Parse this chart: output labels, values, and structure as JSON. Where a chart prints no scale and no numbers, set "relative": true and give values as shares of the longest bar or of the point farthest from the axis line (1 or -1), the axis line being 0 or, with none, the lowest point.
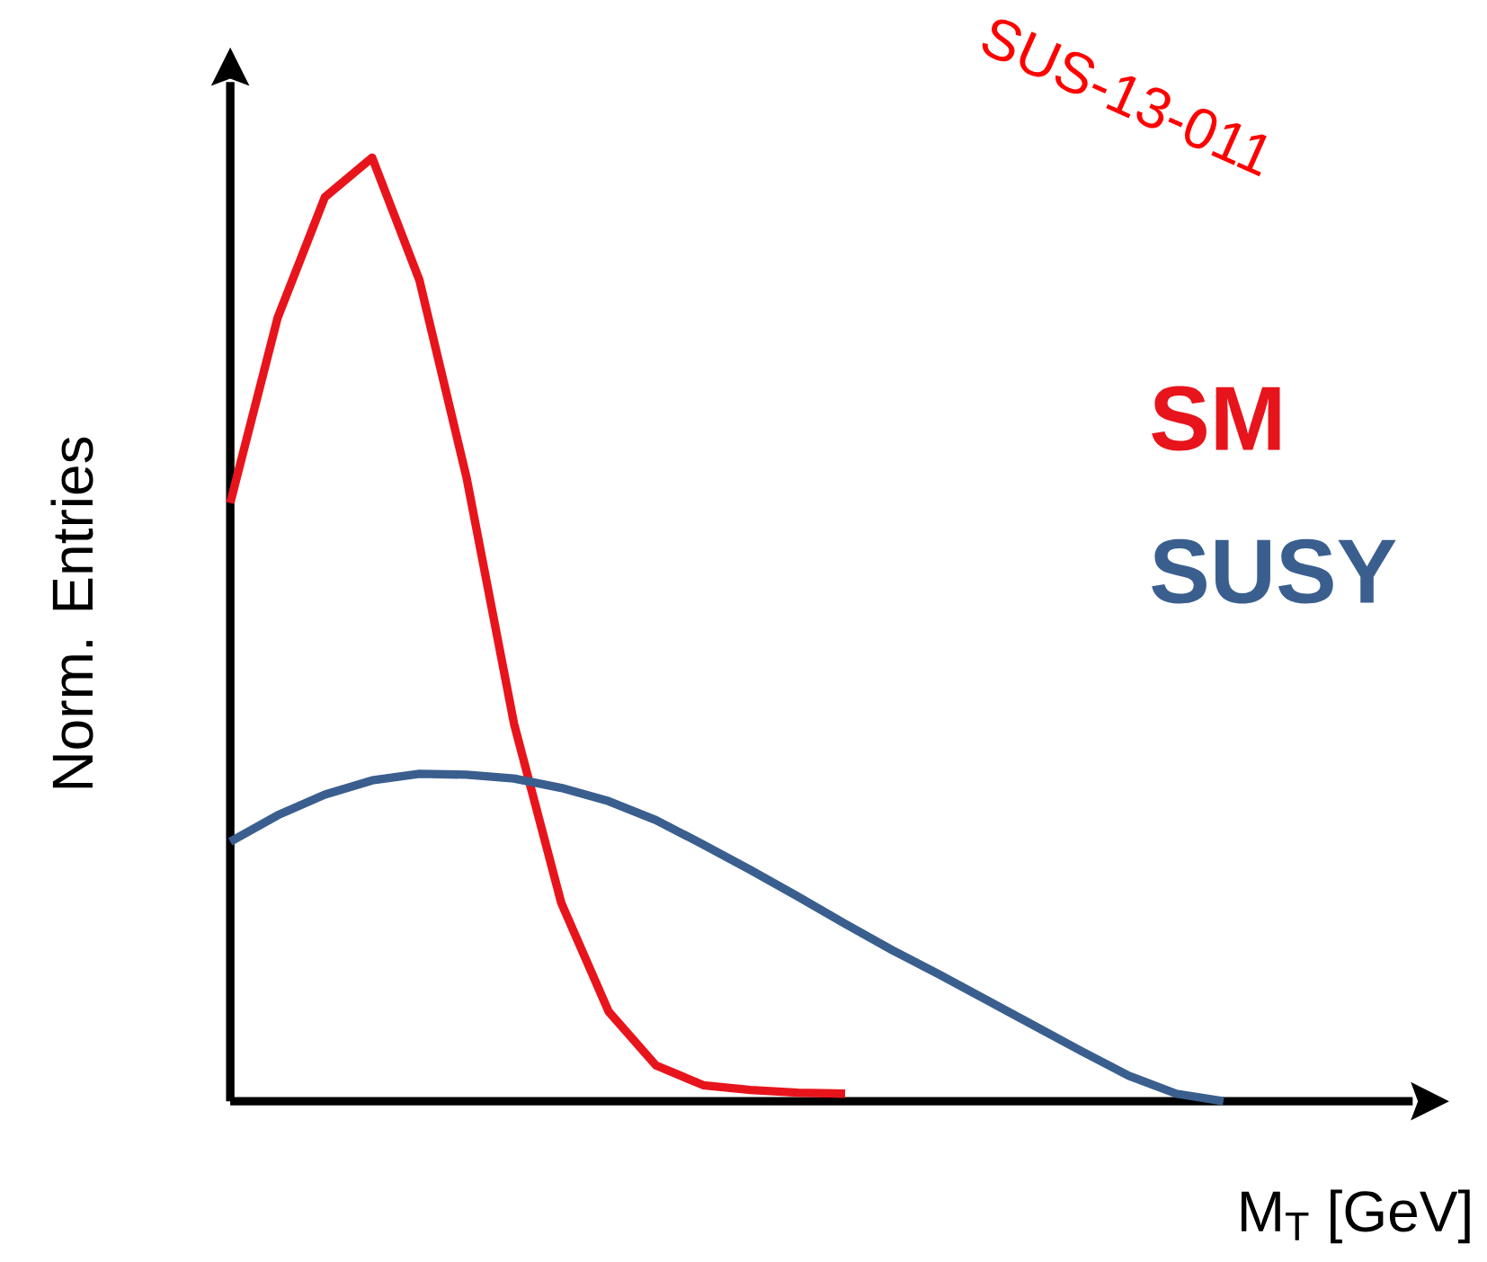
{
  "chart_data": {
    "type": "line",
    "relative": true,
    "xlabel": "M$_{T}$ [GeV]",
    "ylabel": "Norm. Entries",
    "annotations": [
      "SUS-13-011"
    ],
    "marker": "none",
    "line_style": "solid",
    "categories": [
      null,
      null,
      null,
      null,
      null,
      null,
      null,
      null,
      null,
      null,
      null,
      null,
      null,
      null,
      null,
      null,
      null,
      null,
      null,
      null,
      null,
      null
    ],
    "series": [
      {
        "name": "SM",
        "color": "#e8141c",
        "values": [
          0.634,
          0.83,
          0.958,
          1,
          0.87,
          0.66,
          0.4,
          0.21,
          0.095,
          0.038,
          0.017,
          0.012,
          0.009,
          0.008,
          null,
          null,
          null,
          null,
          null,
          null,
          null,
          null
        ]
      },
      {
        "name": "SUSY",
        "color": "#3a5f8f",
        "values": [
          0.275,
          0.303,
          0.325,
          0.34,
          0.347,
          0.346,
          0.342,
          0.332,
          0.318,
          0.298,
          0.272,
          0.245,
          0.217,
          0.188,
          0.16,
          0.134,
          0.107,
          0.08,
          0.053,
          0.027,
          0.008,
          0
        ]
      }
    ]
  }
}
